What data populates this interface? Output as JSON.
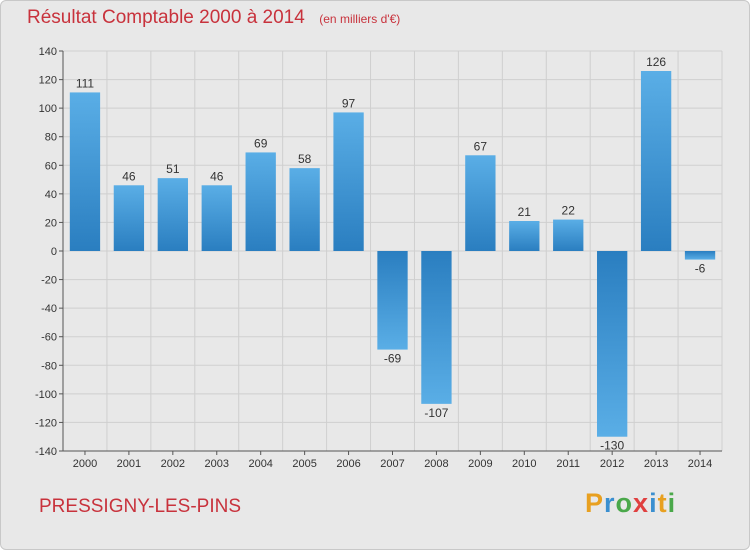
{
  "header": {
    "title": "Résultat Comptable 2000 à 2014",
    "unit": "(en milliers d'€)"
  },
  "footer": {
    "place": "PRESSIGNY-LES-PINS",
    "logo": "Proxiti"
  },
  "colors": {
    "title": "#c8323c",
    "bar_light": "#5aaee6",
    "bar_dark": "#2a7ec0",
    "logo_letters": [
      "#e8a020",
      "#3a8fd0",
      "#4aa84a",
      "#e04040",
      "#3a8fd0",
      "#e8a020",
      "#4aa84a"
    ]
  },
  "chart_data": {
    "type": "bar",
    "categories": [
      "2000",
      "2001",
      "2002",
      "2003",
      "2004",
      "2005",
      "2006",
      "2007",
      "2008",
      "2009",
      "2010",
      "2011",
      "2012",
      "2013",
      "2014"
    ],
    "values": [
      111,
      46,
      51,
      46,
      69,
      58,
      97,
      -69,
      -107,
      67,
      21,
      22,
      -130,
      126,
      -6
    ],
    "value_labels": [
      "111",
      "46",
      "51",
      "46",
      "69",
      "58",
      "97",
      "-69",
      "-107",
      "67",
      "21",
      "22",
      "-130",
      "126",
      "-6"
    ],
    "ylim": [
      -140,
      140
    ],
    "yticks": [
      140,
      120,
      100,
      80,
      60,
      40,
      20,
      0,
      -20,
      -40,
      -60,
      -80,
      -100,
      -120,
      -140
    ],
    "ytick_labels": [
      "140",
      "120",
      "100",
      "80",
      "60",
      "40",
      "20",
      "0",
      "-20",
      "-40",
      "-60",
      "-80",
      "-100",
      "-120",
      "-140"
    ],
    "grid": true,
    "title": "Résultat Comptable 2000 à 2014",
    "xlabel": "",
    "ylabel": ""
  }
}
